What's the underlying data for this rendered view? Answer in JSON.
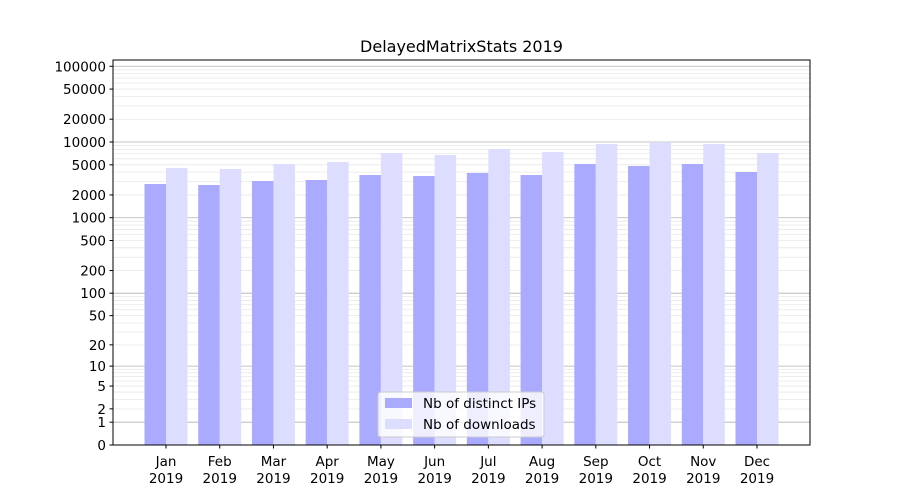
{
  "chart_data": {
    "type": "bar",
    "title": "DelayedMatrixStats 2019",
    "xlabel": "",
    "ylabel": "",
    "yscale": "log10(1+y)",
    "ylim": [
      0,
      121000
    ],
    "yticks": [
      0,
      1,
      2,
      5,
      10,
      20,
      50,
      100,
      200,
      500,
      1000,
      2000,
      5000,
      10000,
      20000,
      50000,
      100000
    ],
    "ytick_labels": [
      "0",
      "1",
      "2",
      "5",
      "10",
      "20",
      "50",
      "100",
      "200",
      "500",
      "1000",
      "2000",
      "5000",
      "10000",
      "20000",
      "50000",
      "100000"
    ],
    "grid": true,
    "legend_position": "bottom-center",
    "categories": [
      [
        "Jan",
        "2019"
      ],
      [
        "Feb",
        "2019"
      ],
      [
        "Mar",
        "2019"
      ],
      [
        "Apr",
        "2019"
      ],
      [
        "May",
        "2019"
      ],
      [
        "Jun",
        "2019"
      ],
      [
        "Jul",
        "2019"
      ],
      [
        "Aug",
        "2019"
      ],
      [
        "Sep",
        "2019"
      ],
      [
        "Oct",
        "2019"
      ],
      [
        "Nov",
        "2019"
      ],
      [
        "Dec",
        "2019"
      ]
    ],
    "series": [
      {
        "name": "Nb of distinct IPs",
        "color": "#aaaaff",
        "values": [
          2790,
          2705,
          3055,
          3150,
          3665,
          3555,
          3900,
          3665,
          5130,
          4820,
          5130,
          4020
        ]
      },
      {
        "name": "Nb of downloads",
        "color": "#ddddff",
        "values": [
          4540,
          4400,
          5130,
          5450,
          7160,
          6730,
          8090,
          7380,
          9410,
          10000,
          9410,
          7160
        ]
      }
    ]
  }
}
